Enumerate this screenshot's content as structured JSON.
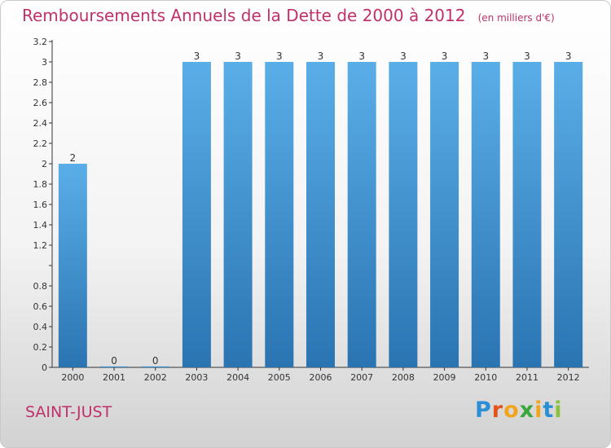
{
  "header": {
    "title": "Remboursements Annuels de la Dette de 2000 à 2012",
    "unit": "(en milliers d'€)"
  },
  "footer": {
    "city": "SAINT-JUST",
    "logo_letters": [
      "P",
      "r",
      "o",
      "x",
      "i",
      "t",
      "i"
    ],
    "logo_colors": [
      "#2a8fd6",
      "#e3541c",
      "#f2a51c",
      "#3aa63c",
      "#f2a51c",
      "#2a8fd6",
      "#8bc23c"
    ]
  },
  "chart_data": {
    "type": "bar",
    "categories": [
      "2000",
      "2001",
      "2002",
      "2003",
      "2004",
      "2005",
      "2006",
      "2007",
      "2008",
      "2009",
      "2010",
      "2011",
      "2012"
    ],
    "values": [
      2,
      0,
      0,
      3,
      3,
      3,
      3,
      3,
      3,
      3,
      3,
      3,
      3
    ],
    "value_labels": [
      "2",
      "0",
      "0",
      "3",
      "3",
      "3",
      "3",
      "3",
      "3",
      "3",
      "3",
      "3",
      "3"
    ],
    "title": "Remboursements Annuels de la Dette de 2000 à 2012",
    "xlabel": "",
    "ylabel": "",
    "ylim": [
      0,
      3.2
    ],
    "yticks": [
      0,
      0.2,
      0.4,
      0.6,
      0.8,
      1,
      1.2,
      1.4,
      1.6,
      1.8,
      2,
      2.2,
      2.4,
      2.6,
      2.8,
      3,
      3.2
    ],
    "ytick_labels": [
      "0",
      "0.2",
      "0.4",
      "0.6",
      "0.8",
      "",
      "1.2",
      "1.4",
      "1.6",
      "1.8",
      "2",
      "2.2",
      "2.4",
      "2.6",
      "2.8",
      "3",
      "3.2"
    ],
    "grid": false,
    "bar_color_top": "#5aaee8",
    "bar_color_bottom": "#2a74b2"
  }
}
